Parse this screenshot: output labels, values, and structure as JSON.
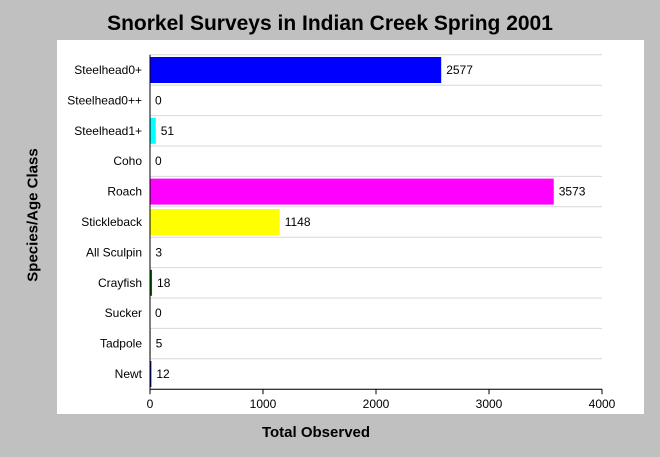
{
  "chart_data": {
    "type": "bar",
    "orientation": "horizontal",
    "title": "Snorkel Surveys in Indian Creek Spring 2001",
    "xlabel": "Total Observed",
    "ylabel": "Species/Age Class",
    "xlim": [
      0,
      4000
    ],
    "xticks": [
      0,
      1000,
      2000,
      3000,
      4000
    ],
    "grid": true,
    "categories": [
      "Steelhead0+",
      "Steelhead0++",
      "Steelhead1+",
      "Coho",
      "Roach",
      "Stickleback",
      "All Sculpin",
      "Crayfish",
      "Sucker",
      "Tadpole",
      "Newt"
    ],
    "values": [
      2577,
      0,
      51,
      0,
      3573,
      1148,
      3,
      18,
      0,
      5,
      12
    ],
    "colors": [
      "#0000ff",
      "#808080",
      "#00ffff",
      "#808080",
      "#ff00ff",
      "#ffff00",
      "#000000",
      "#006400",
      "#808080",
      "#800000",
      "#000080"
    ]
  }
}
